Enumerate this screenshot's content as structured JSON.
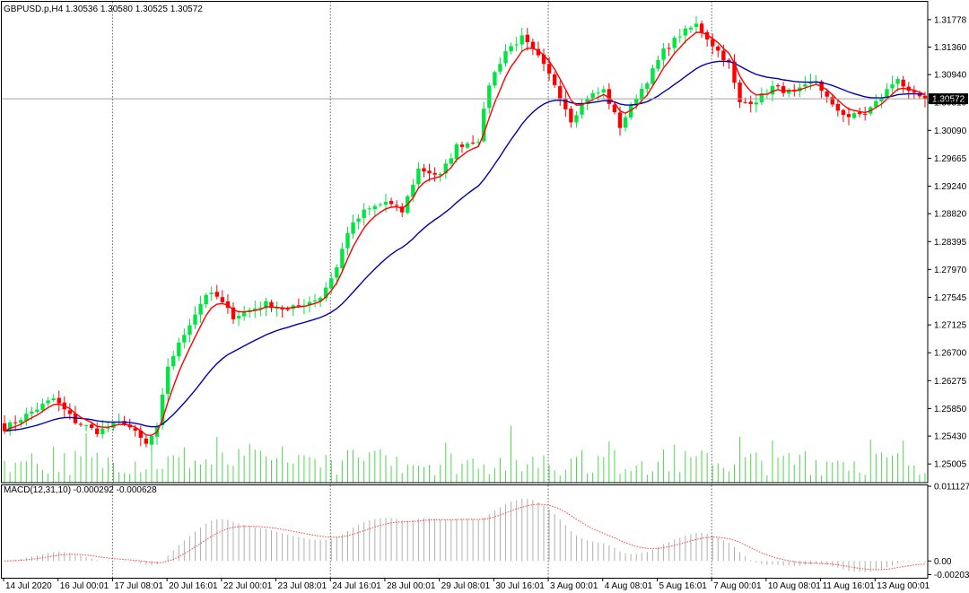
{
  "chart_data": {
    "type": "candlestick",
    "header": "GBPUSD.p,H4  1.30536 1.30580 1.30525 1.30572",
    "price_axis": {
      "ylim": [
        1.2472,
        1.3205
      ],
      "ticks": [
        "1.31778",
        "1.31360",
        "1.30940",
        "1.30519",
        "1.30090",
        "1.29665",
        "1.29240",
        "1.28820",
        "1.28395",
        "1.27970",
        "1.27545",
        "1.27125",
        "1.26700",
        "1.26275",
        "1.25850",
        "1.25430",
        "1.25005"
      ],
      "current": "1.30572",
      "current_value": 1.30572
    },
    "macd_axis": {
      "ylim": [
        -0.0025,
        0.0114
      ],
      "ticks": [
        "0.011127",
        "0.00",
        "-0.002032"
      ]
    },
    "macd_label": "MACD(12,31,10) -0.000292 -0.000628",
    "time_labels": [
      "14 Jul 2020",
      "16 Jul 00:01",
      "17 Jul 08:01",
      "20 Jul 16:01",
      "22 Jul 00:01",
      "23 Jul 08:01",
      "24 Jul 16:01",
      "28 Jul 00:01",
      "29 Jul 08:01",
      "30 Jul 16:01",
      "3 Aug 00:01",
      "4 Aug 08:01",
      "5 Aug 16:01",
      "7 Aug 00:01",
      "10 Aug 08:01",
      "11 Aug 16:01",
      "13 Aug 00:01"
    ],
    "separators_at_label": [
      2,
      6,
      10,
      13
    ],
    "bar_count": 170,
    "anchors": [
      {
        "i": 0,
        "c": 1.2555
      },
      {
        "i": 5,
        "c": 1.258
      },
      {
        "i": 9,
        "c": 1.26
      },
      {
        "i": 13,
        "c": 1.2565
      },
      {
        "i": 17,
        "c": 1.255
      },
      {
        "i": 22,
        "c": 1.2565
      },
      {
        "i": 26,
        "c": 1.253
      },
      {
        "i": 28,
        "c": 1.2555
      },
      {
        "i": 30,
        "c": 1.265
      },
      {
        "i": 34,
        "c": 1.2715
      },
      {
        "i": 37,
        "c": 1.276
      },
      {
        "i": 39,
        "c": 1.2755
      },
      {
        "i": 42,
        "c": 1.2725
      },
      {
        "i": 48,
        "c": 1.2745
      },
      {
        "i": 52,
        "c": 1.2735
      },
      {
        "i": 58,
        "c": 1.2755
      },
      {
        "i": 61,
        "c": 1.28
      },
      {
        "i": 63,
        "c": 1.2855
      },
      {
        "i": 66,
        "c": 1.2885
      },
      {
        "i": 70,
        "c": 1.29
      },
      {
        "i": 73,
        "c": 1.2885
      },
      {
        "i": 76,
        "c": 1.295
      },
      {
        "i": 80,
        "c": 1.294
      },
      {
        "i": 83,
        "c": 1.2985
      },
      {
        "i": 87,
        "c": 1.2995
      },
      {
        "i": 89,
        "c": 1.308
      },
      {
        "i": 92,
        "c": 1.313
      },
      {
        "i": 95,
        "c": 1.315
      },
      {
        "i": 98,
        "c": 1.312
      },
      {
        "i": 101,
        "c": 1.308
      },
      {
        "i": 104,
        "c": 1.3025
      },
      {
        "i": 107,
        "c": 1.306
      },
      {
        "i": 110,
        "c": 1.307
      },
      {
        "i": 113,
        "c": 1.3015
      },
      {
        "i": 116,
        "c": 1.306
      },
      {
        "i": 118,
        "c": 1.3085
      },
      {
        "i": 121,
        "c": 1.313
      },
      {
        "i": 124,
        "c": 1.3155
      },
      {
        "i": 127,
        "c": 1.317
      },
      {
        "i": 130,
        "c": 1.314
      },
      {
        "i": 133,
        "c": 1.311
      },
      {
        "i": 135,
        "c": 1.305
      },
      {
        "i": 138,
        "c": 1.3055
      },
      {
        "i": 141,
        "c": 1.3075
      },
      {
        "i": 145,
        "c": 1.3065
      },
      {
        "i": 149,
        "c": 1.3085
      },
      {
        "i": 152,
        "c": 1.3045
      },
      {
        "i": 155,
        "c": 1.303
      },
      {
        "i": 158,
        "c": 1.3035
      },
      {
        "i": 161,
        "c": 1.306
      },
      {
        "i": 164,
        "c": 1.309
      },
      {
        "i": 166,
        "c": 1.3065
      },
      {
        "i": 169,
        "c": 1.3057
      }
    ],
    "colors": {
      "bull": "#00e640",
      "bear": "#ff0000",
      "ma_fast": "#ff0000",
      "ma_slow": "#0000b0",
      "volume": "#00c800",
      "grid_sep": "#606060",
      "macd_hist": "#b0b0b0",
      "macd_signal": "#ff4040"
    }
  }
}
